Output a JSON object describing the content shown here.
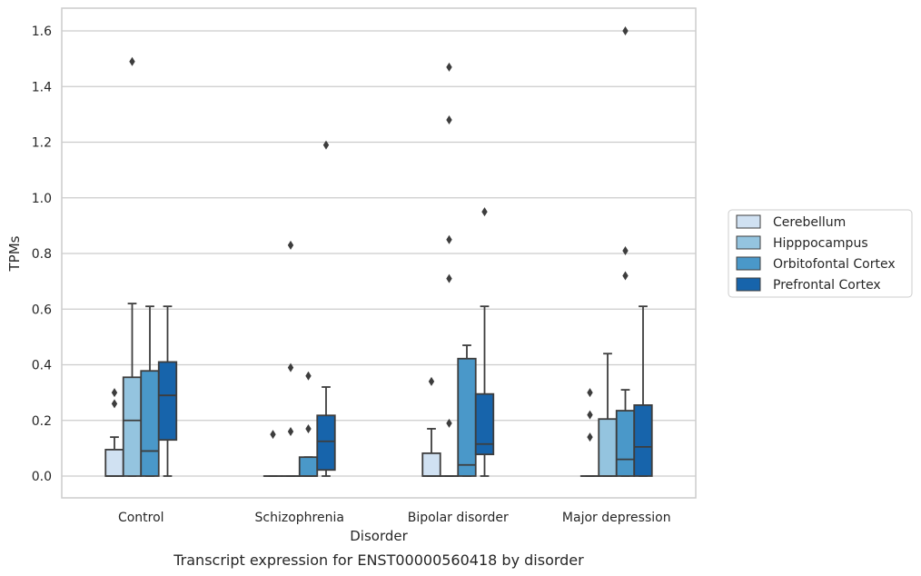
{
  "chart_data": {
    "type": "box",
    "caption": "Transcript expression for ENST00000560418 by disorder",
    "xlabel": "Disorder",
    "ylabel": "TPMs",
    "ylim": [
      -0.08,
      1.68
    ],
    "yticks": [
      0.0,
      0.2,
      0.4,
      0.6,
      0.8,
      1.0,
      1.2,
      1.4,
      1.6
    ],
    "ytick_labels": [
      "0.0",
      "0.2",
      "0.4",
      "0.6",
      "0.8",
      "1.0",
      "1.2",
      "1.4",
      "1.6"
    ],
    "grid": "horizontal",
    "legend_position": "right",
    "categories": [
      "Control",
      "Schizophrenia",
      "Bipolar disorder",
      "Major depression"
    ],
    "series": [
      {
        "name": "Cerebellum",
        "color": "#d0e1f2",
        "boxes": [
          {
            "whislo": 0.0,
            "q1": 0.0,
            "med": 0.0,
            "q3": 0.095,
            "whishi": 0.14,
            "fliers": [
              0.26,
              0.3
            ]
          },
          {
            "whislo": 0.0,
            "q1": 0.0,
            "med": 0.0,
            "q3": 0.0,
            "whishi": 0.0,
            "fliers": [
              0.15
            ]
          },
          {
            "whislo": 0.0,
            "q1": 0.0,
            "med": 0.0,
            "q3": 0.082,
            "whishi": 0.17,
            "fliers": [
              0.34
            ]
          },
          {
            "whislo": 0.0,
            "q1": 0.0,
            "med": 0.0,
            "q3": 0.0,
            "whishi": 0.0,
            "fliers": [
              0.14,
              0.22,
              0.3
            ]
          }
        ]
      },
      {
        "name": "Hipppocampus",
        "color": "#94c4df",
        "boxes": [
          {
            "whislo": 0.0,
            "q1": 0.0,
            "med": 0.2,
            "q3": 0.355,
            "whishi": 0.62,
            "fliers": [
              1.49
            ]
          },
          {
            "whislo": 0.0,
            "q1": 0.0,
            "med": 0.0,
            "q3": 0.0,
            "whishi": 0.0,
            "fliers": [
              0.16,
              0.39,
              0.83
            ]
          },
          {
            "whislo": 0.0,
            "q1": 0.0,
            "med": 0.0,
            "q3": 0.0,
            "whishi": 0.0,
            "fliers": [
              0.19,
              0.71,
              0.85,
              1.28,
              1.47
            ]
          },
          {
            "whislo": 0.0,
            "q1": 0.0,
            "med": 0.0,
            "q3": 0.205,
            "whishi": 0.44,
            "fliers": []
          }
        ]
      },
      {
        "name": "Orbitofontal Cortex",
        "color": "#4a98c9",
        "boxes": [
          {
            "whislo": 0.0,
            "q1": 0.0,
            "med": 0.09,
            "q3": 0.378,
            "whishi": 0.61,
            "fliers": []
          },
          {
            "whislo": 0.0,
            "q1": 0.0,
            "med": 0.0,
            "q3": 0.068,
            "whishi": 0.068,
            "fliers": [
              0.17,
              0.36
            ]
          },
          {
            "whislo": 0.0,
            "q1": 0.0,
            "med": 0.04,
            "q3": 0.422,
            "whishi": 0.47,
            "fliers": []
          },
          {
            "whislo": 0.0,
            "q1": 0.0,
            "med": 0.06,
            "q3": 0.235,
            "whishi": 0.31,
            "fliers": [
              0.72,
              0.81,
              1.6
            ]
          }
        ]
      },
      {
        "name": "Prefrontal Cortex",
        "color": "#1764ab",
        "boxes": [
          {
            "whislo": 0.0,
            "q1": 0.13,
            "med": 0.29,
            "q3": 0.41,
            "whishi": 0.61,
            "fliers": []
          },
          {
            "whislo": 0.0,
            "q1": 0.022,
            "med": 0.125,
            "q3": 0.218,
            "whishi": 0.32,
            "fliers": [
              1.19
            ]
          },
          {
            "whislo": 0.0,
            "q1": 0.078,
            "med": 0.115,
            "q3": 0.295,
            "whishi": 0.61,
            "fliers": [
              0.95
            ]
          },
          {
            "whislo": 0.0,
            "q1": 0.0,
            "med": 0.105,
            "q3": 0.255,
            "whishi": 0.61,
            "fliers": []
          }
        ]
      }
    ]
  }
}
